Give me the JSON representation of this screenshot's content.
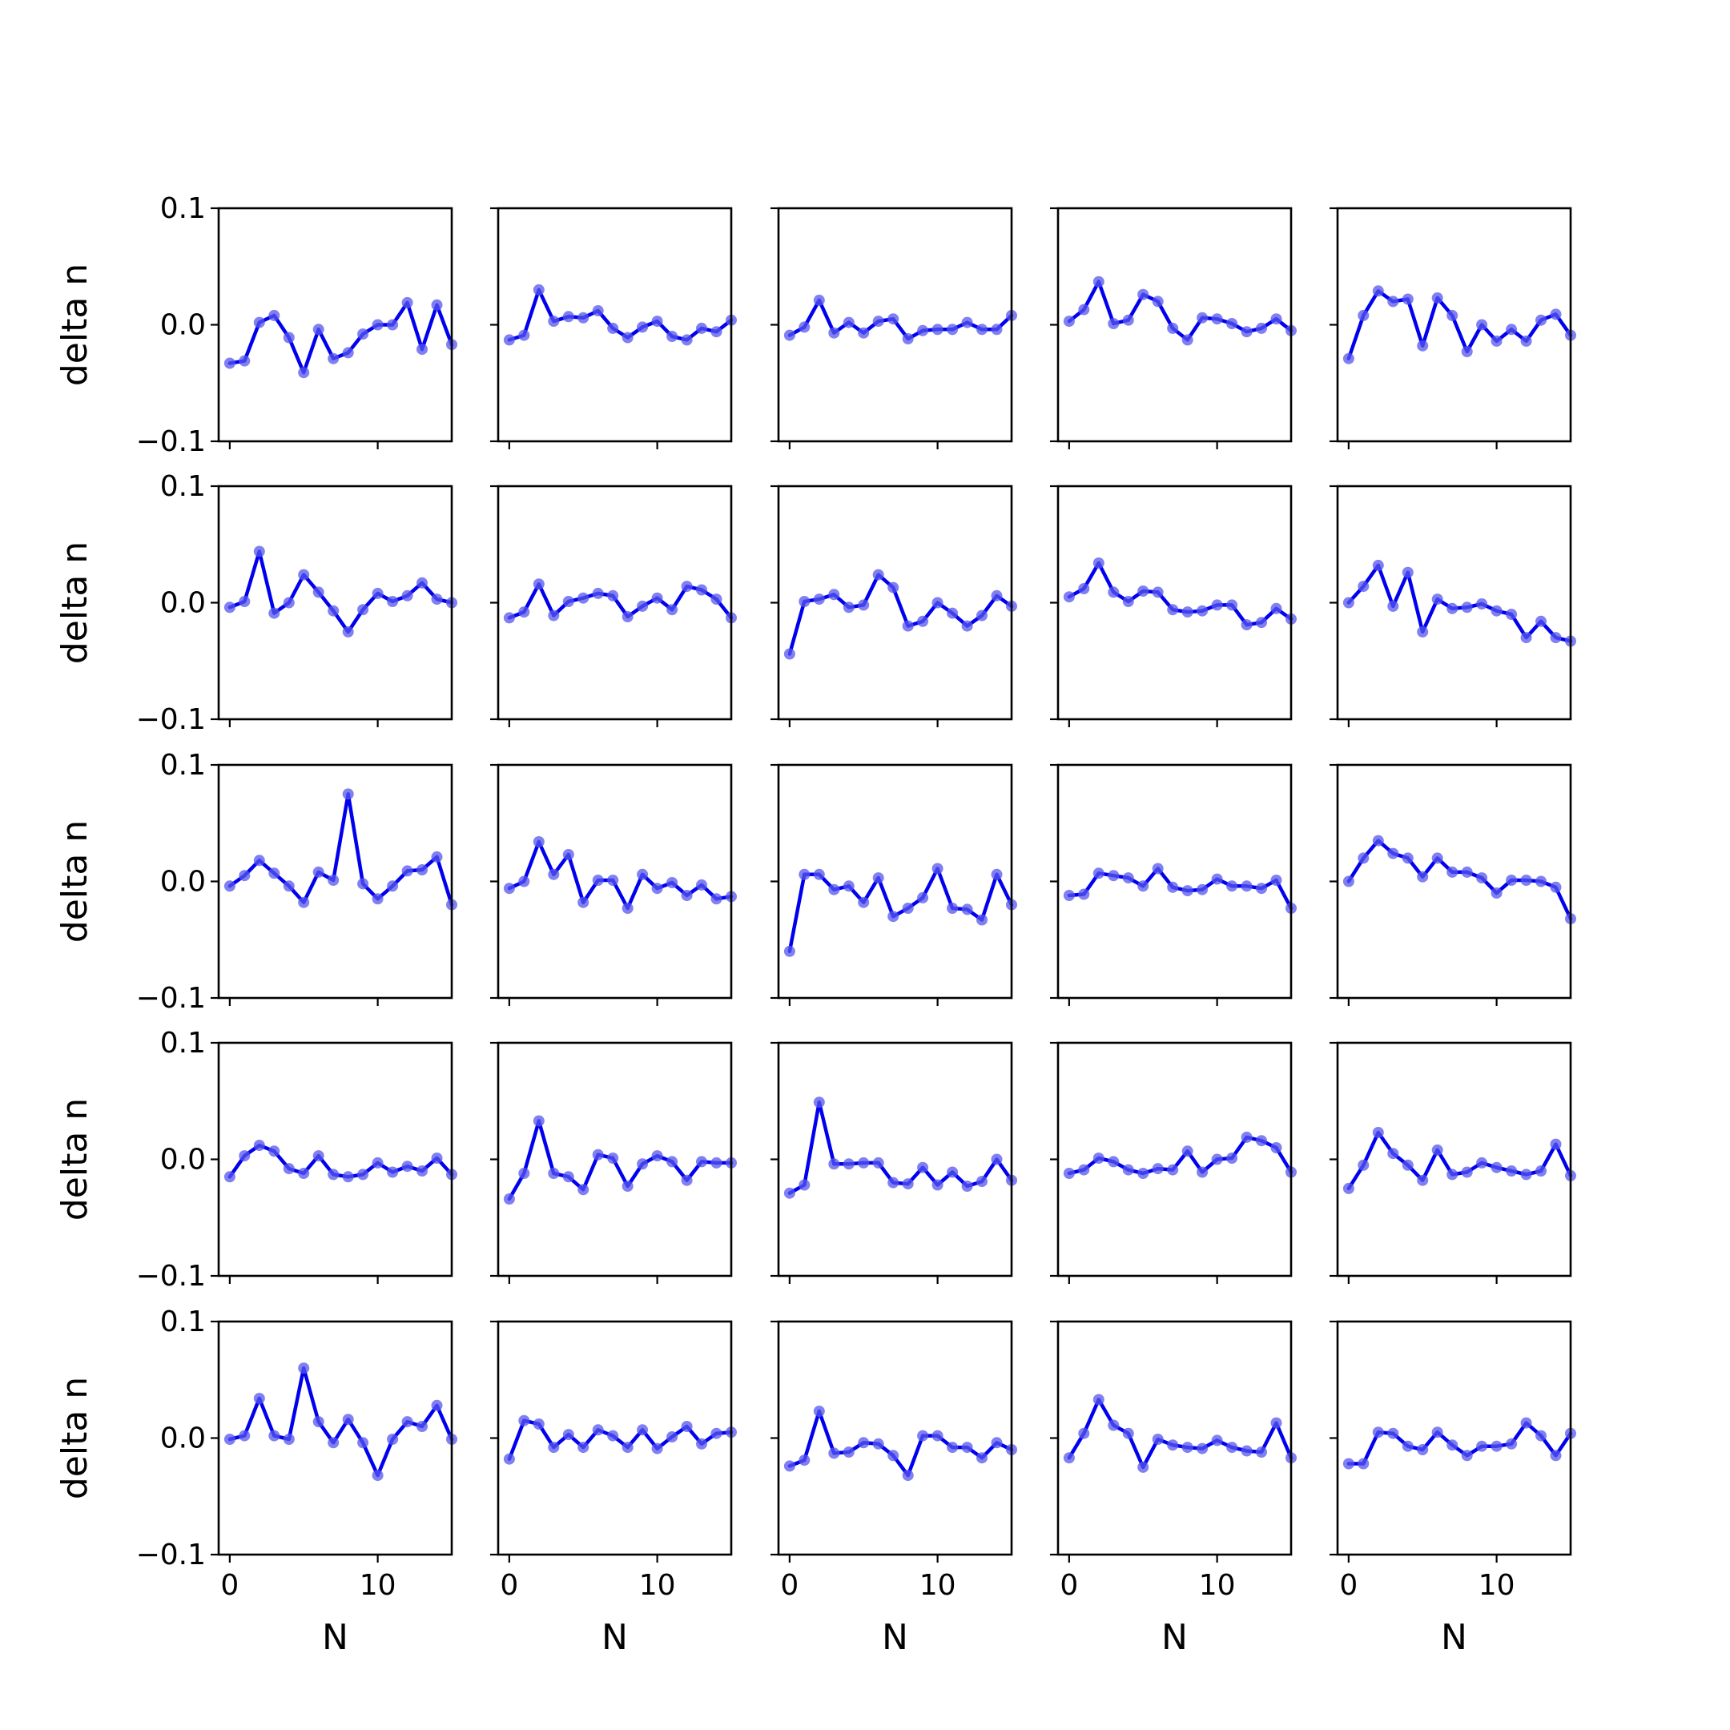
{
  "chart_data": {
    "type": "line",
    "layout": "5x5 grid of small multiples",
    "xlabel": "N",
    "ylabel": "delta n",
    "xlim": [
      -0.75,
      15.0
    ],
    "ylim": [
      -0.1,
      0.1
    ],
    "x_ticks": [
      "0",
      "10"
    ],
    "y_ticks": [
      "−0.1",
      "0.0",
      "0.1"
    ],
    "x_tick_values": [
      0,
      10
    ],
    "y_tick_values": [
      -0.1,
      0.0,
      0.1
    ],
    "x": [
      0,
      1,
      2,
      3,
      4,
      5,
      6,
      7,
      8,
      9,
      10,
      11,
      12,
      13,
      14,
      15
    ],
    "line_color": "#0000ee",
    "marker_color": "#5555ee",
    "grid": false,
    "panels": [
      [
        -0.033,
        -0.031,
        0.002,
        0.008,
        -0.011,
        -0.041,
        -0.004,
        -0.029,
        -0.024,
        -0.008,
        0.0,
        0.0,
        0.019,
        -0.021,
        0.017,
        -0.017
      ],
      [
        -0.013,
        -0.009,
        0.03,
        0.003,
        0.007,
        0.006,
        0.012,
        -0.003,
        -0.011,
        -0.002,
        0.003,
        -0.01,
        -0.013,
        -0.003,
        -0.006,
        0.004
      ],
      [
        -0.009,
        -0.002,
        0.021,
        -0.007,
        0.002,
        -0.007,
        0.003,
        0.005,
        -0.012,
        -0.005,
        -0.004,
        -0.004,
        0.002,
        -0.004,
        -0.004,
        0.008
      ],
      [
        0.003,
        0.013,
        0.037,
        0.001,
        0.004,
        0.026,
        0.02,
        -0.003,
        -0.013,
        0.006,
        0.005,
        0.001,
        -0.006,
        -0.003,
        0.005,
        -0.005
      ],
      [
        -0.029,
        0.008,
        0.029,
        0.02,
        0.022,
        -0.018,
        0.023,
        0.008,
        -0.023,
        0.0,
        -0.014,
        -0.004,
        -0.014,
        0.004,
        0.009,
        -0.009
      ],
      [
        -0.004,
        0.001,
        0.044,
        -0.009,
        0.0,
        0.024,
        0.009,
        -0.007,
        -0.025,
        -0.006,
        0.008,
        0.001,
        0.006,
        0.017,
        0.003,
        0.0
      ],
      [
        -0.013,
        -0.008,
        0.016,
        -0.011,
        0.001,
        0.004,
        0.008,
        0.006,
        -0.012,
        -0.003,
        0.004,
        -0.006,
        0.014,
        0.011,
        0.003,
        -0.013
      ],
      [
        -0.044,
        0.001,
        0.003,
        0.007,
        -0.004,
        -0.002,
        0.024,
        0.013,
        -0.02,
        -0.016,
        0.0,
        -0.009,
        -0.02,
        -0.011,
        0.006,
        -0.003
      ],
      [
        0.005,
        0.012,
        0.034,
        0.009,
        0.001,
        0.01,
        0.009,
        -0.006,
        -0.008,
        -0.007,
        -0.002,
        -0.002,
        -0.019,
        -0.017,
        -0.005,
        -0.014
      ],
      [
        0.0,
        0.014,
        0.032,
        -0.003,
        0.026,
        -0.025,
        0.003,
        -0.005,
        -0.004,
        -0.001,
        -0.007,
        -0.01,
        -0.03,
        -0.016,
        -0.03,
        -0.033
      ],
      [
        -0.004,
        0.005,
        0.018,
        0.007,
        -0.004,
        -0.018,
        0.008,
        0.001,
        0.075,
        -0.002,
        -0.015,
        -0.004,
        0.009,
        0.01,
        0.021,
        -0.02
      ],
      [
        -0.006,
        0.0,
        0.034,
        0.006,
        0.023,
        -0.018,
        0.001,
        0.001,
        -0.023,
        0.006,
        -0.006,
        -0.001,
        -0.012,
        -0.003,
        -0.015,
        -0.013
      ],
      [
        -0.06,
        0.006,
        0.006,
        -0.007,
        -0.004,
        -0.018,
        0.003,
        -0.03,
        -0.023,
        -0.014,
        0.011,
        -0.023,
        -0.024,
        -0.033,
        0.006,
        -0.02
      ],
      [
        -0.012,
        -0.011,
        0.007,
        0.005,
        0.003,
        -0.004,
        0.011,
        -0.005,
        -0.008,
        -0.007,
        0.002,
        -0.004,
        -0.004,
        -0.006,
        0.001,
        -0.023
      ],
      [
        0.0,
        0.02,
        0.035,
        0.024,
        0.02,
        0.004,
        0.02,
        0.008,
        0.008,
        0.003,
        -0.01,
        0.001,
        0.001,
        0.0,
        -0.005,
        -0.032
      ],
      [
        -0.015,
        0.003,
        0.012,
        0.007,
        -0.008,
        -0.012,
        0.003,
        -0.013,
        -0.015,
        -0.013,
        -0.003,
        -0.011,
        -0.006,
        -0.01,
        0.001,
        -0.013
      ],
      [
        -0.034,
        -0.012,
        0.033,
        -0.012,
        -0.015,
        -0.026,
        0.004,
        0.001,
        -0.023,
        -0.004,
        0.003,
        -0.002,
        -0.018,
        -0.002,
        -0.003,
        -0.003
      ],
      [
        -0.029,
        -0.022,
        0.049,
        -0.004,
        -0.004,
        -0.003,
        -0.003,
        -0.02,
        -0.021,
        -0.007,
        -0.022,
        -0.011,
        -0.023,
        -0.019,
        0.0,
        -0.018
      ],
      [
        -0.012,
        -0.009,
        0.001,
        -0.002,
        -0.009,
        -0.012,
        -0.008,
        -0.009,
        0.007,
        -0.011,
        0.0,
        0.001,
        0.019,
        0.016,
        0.01,
        -0.011
      ],
      [
        -0.025,
        -0.005,
        0.023,
        0.005,
        -0.005,
        -0.018,
        0.008,
        -0.013,
        -0.011,
        -0.003,
        -0.007,
        -0.01,
        -0.013,
        -0.01,
        0.013,
        -0.014
      ],
      [
        -0.001,
        0.002,
        0.034,
        0.002,
        -0.001,
        0.06,
        0.014,
        -0.004,
        0.016,
        -0.004,
        -0.032,
        -0.001,
        0.014,
        0.01,
        0.028,
        -0.001
      ],
      [
        -0.018,
        0.015,
        0.012,
        -0.008,
        0.003,
        -0.008,
        0.007,
        0.002,
        -0.008,
        0.007,
        -0.009,
        0.001,
        0.01,
        -0.005,
        0.004,
        0.005
      ],
      [
        -0.024,
        -0.019,
        0.023,
        -0.013,
        -0.012,
        -0.004,
        -0.005,
        -0.015,
        -0.032,
        0.002,
        0.002,
        -0.008,
        -0.008,
        -0.017,
        -0.004,
        -0.01
      ],
      [
        -0.017,
        0.004,
        0.033,
        0.011,
        0.004,
        -0.025,
        -0.001,
        -0.006,
        -0.008,
        -0.009,
        -0.002,
        -0.008,
        -0.011,
        -0.012,
        0.013,
        -0.017
      ],
      [
        -0.022,
        -0.022,
        0.005,
        0.004,
        -0.007,
        -0.01,
        0.005,
        -0.006,
        -0.015,
        -0.007,
        -0.007,
        -0.005,
        0.013,
        0.002,
        -0.015,
        0.004
      ]
    ]
  }
}
